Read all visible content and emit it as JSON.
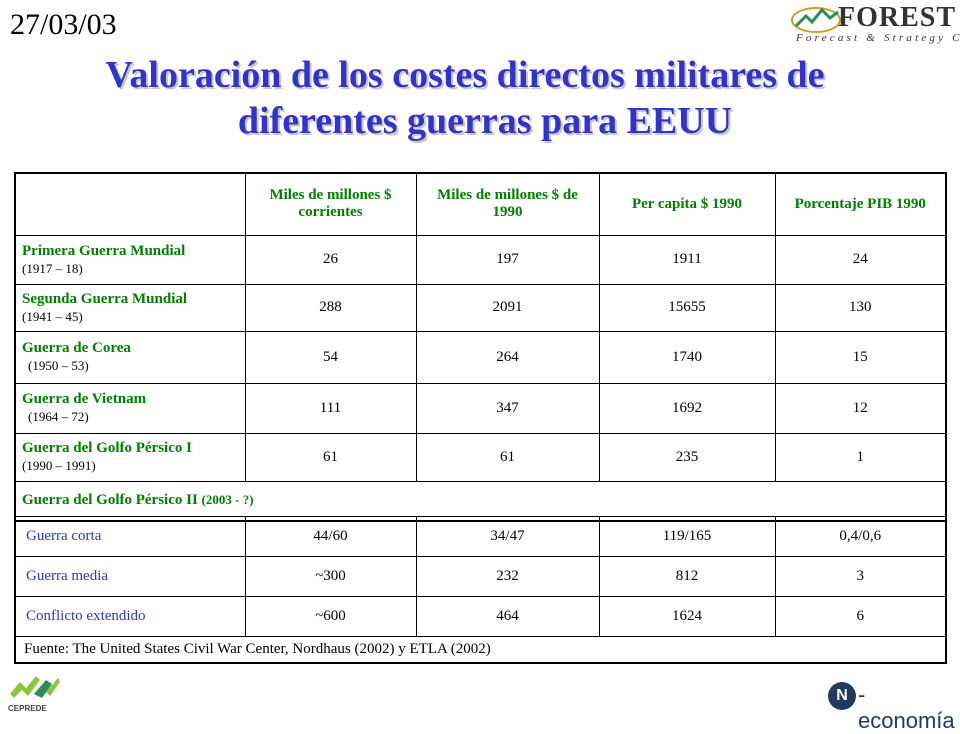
{
  "header": {
    "date": "27/03/03",
    "logo_word": "FOREST",
    "logo_sub": "Forecast & Strategy Club"
  },
  "title": {
    "line1": "Valoración de los costes directos militares de",
    "line2": "diferentes guerras para EEUU"
  },
  "table": {
    "columns": [
      "Miles de millones $ corrientes",
      "Miles de millones $ de 1990",
      "Per capita $ 1990",
      "Porcentaje PIB 1990"
    ],
    "rows": [
      {
        "name": "Primera Guerra Mundial",
        "period": "(1917 – 18)",
        "values": [
          "26",
          "197",
          "1911",
          "24"
        ]
      },
      {
        "name": "Segunda Guerra Mundial",
        "period": "(1941 – 45)",
        "values": [
          "288",
          "2091",
          "15655",
          "130"
        ]
      },
      {
        "name": "Guerra de Corea",
        "period": "(1950 – 53)",
        "values": [
          "54",
          "264",
          "1740",
          "15"
        ]
      },
      {
        "name": "Guerra de Vietnam",
        "period": "(1964 – 72)",
        "values": [
          "111",
          "347",
          "1692",
          "12"
        ]
      },
      {
        "name": "Guerra del Golfo Pérsico I",
        "period": "(1990 – 1991)",
        "values": [
          "61",
          "61",
          "235",
          "1"
        ]
      }
    ],
    "gulf2": {
      "name": "Guerra del Golfo Pérsico II",
      "period": "(2003 - ?)"
    },
    "scenarios": [
      {
        "name": "Guerra corta",
        "values": [
          "44/60",
          "34/47",
          "119/165",
          "0,4/0,6"
        ]
      },
      {
        "name": "Guerra media",
        "values": [
          "~300",
          "232",
          "812",
          "3"
        ]
      },
      {
        "name": "Conflicto extendido",
        "values": [
          "~600",
          "464",
          "1624",
          "6"
        ]
      }
    ],
    "source": "Fuente: The United States Civil War Center, Nordhaus (2002) y ETLA (2002)"
  },
  "footer": {
    "left_logo": "CEPREDE",
    "right_logo_mark": "N",
    "right_logo_text": "-economía"
  },
  "colors": {
    "title": "#3333cc",
    "green": "#008000"
  }
}
